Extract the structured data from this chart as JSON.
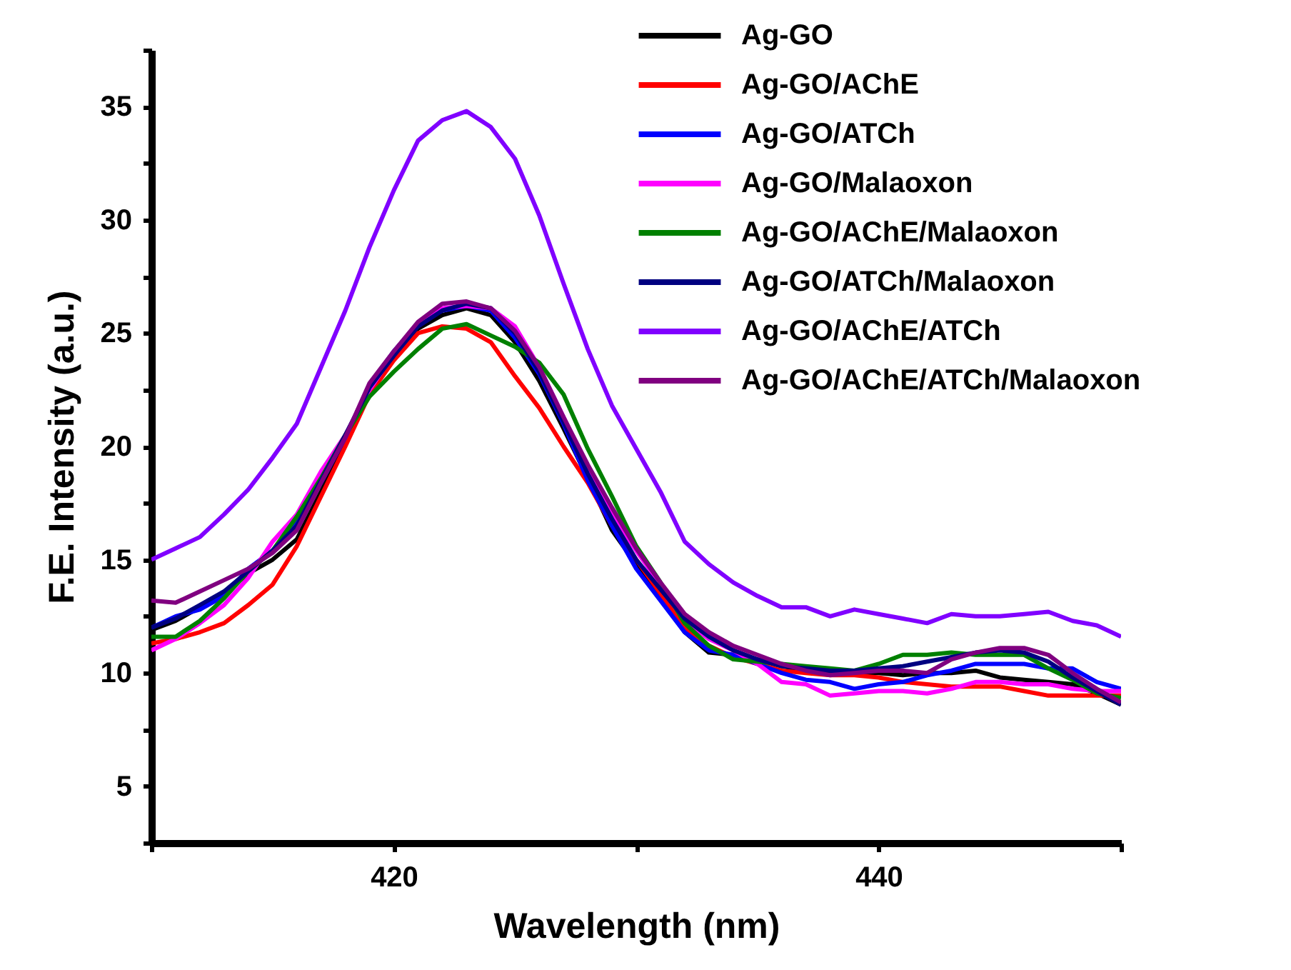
{
  "chart_data": {
    "type": "line",
    "xlabel": "Wavelength (nm)",
    "ylabel": "F.E. Intensity (a.u.)",
    "legend": "top right",
    "xlim": [
      410,
      450
    ],
    "xticks": [
      {
        "value": 410,
        "label": null
      },
      420,
      {
        "value": 430,
        "label": null
      },
      440,
      {
        "value": 450,
        "label": null
      }
    ],
    "ylim": [
      2.5,
      37.5
    ],
    "yticks": [
      {
        "value": 2.5,
        "label": null
      },
      5,
      {
        "value": 7.5,
        "label": null
      },
      10,
      {
        "value": 12.5,
        "label": null
      },
      15,
      {
        "value": 17.5,
        "label": null
      },
      20,
      {
        "value": 22.5,
        "label": null
      },
      25,
      {
        "value": 27.5,
        "label": null
      },
      30,
      {
        "value": 32.5,
        "label": null
      },
      35,
      {
        "value": 37.5,
        "label": null
      }
    ],
    "x": [
      410,
      411,
      412,
      413,
      414,
      415,
      416,
      417,
      418,
      419,
      420,
      421,
      422,
      423,
      424,
      425,
      426,
      427,
      428,
      429,
      430,
      431,
      432,
      433,
      434,
      435,
      436,
      437,
      438,
      439,
      440,
      441,
      442,
      443,
      444,
      445,
      446,
      447,
      448,
      449,
      450
    ],
    "series": [
      {
        "name": "Ag-GO",
        "color": "#000000",
        "values": [
          11.9,
          12.3,
          12.9,
          13.5,
          14.4,
          15.0,
          15.9,
          18.0,
          20.3,
          22.5,
          24.0,
          25.2,
          25.8,
          26.1,
          25.8,
          24.6,
          22.9,
          20.8,
          18.6,
          16.3,
          14.8,
          13.4,
          11.8,
          10.9,
          10.8,
          10.6,
          10.3,
          10.1,
          10.0,
          10.0,
          10.0,
          9.9,
          10.0,
          10.0,
          10.1,
          9.8,
          9.7,
          9.6,
          9.5,
          9.1,
          8.6
        ]
      },
      {
        "name": "Ag-GO/AChE",
        "color": "#ff0000",
        "values": [
          11.3,
          11.5,
          11.8,
          12.2,
          13.0,
          13.9,
          15.6,
          17.8,
          20.0,
          22.3,
          23.8,
          25.0,
          25.3,
          25.2,
          24.6,
          23.1,
          21.7,
          20.0,
          18.4,
          16.5,
          15.0,
          13.5,
          12.0,
          11.2,
          10.7,
          10.4,
          10.1,
          10.0,
          9.9,
          9.9,
          9.8,
          9.6,
          9.5,
          9.4,
          9.4,
          9.4,
          9.2,
          9.0,
          9.0,
          9.0,
          9.0
        ]
      },
      {
        "name": "Ag-GO/ATCh",
        "color": "#0000ff",
        "values": [
          12.0,
          12.5,
          12.8,
          13.4,
          14.6,
          15.4,
          16.6,
          18.4,
          20.4,
          22.7,
          24.2,
          25.4,
          26.0,
          26.2,
          26.0,
          24.8,
          23.2,
          21.0,
          18.5,
          16.5,
          14.6,
          13.2,
          11.8,
          11.0,
          10.8,
          10.4,
          10.0,
          9.7,
          9.6,
          9.3,
          9.5,
          9.6,
          9.9,
          10.1,
          10.4,
          10.4,
          10.4,
          10.2,
          10.2,
          9.6,
          9.3
        ]
      },
      {
        "name": "Ag-GO/Malaoxon",
        "color": "#ff00ff",
        "values": [
          11.0,
          11.5,
          12.2,
          13.0,
          14.2,
          15.8,
          17.0,
          18.9,
          20.5,
          22.5,
          24.1,
          25.4,
          26.1,
          26.2,
          26.1,
          25.3,
          23.5,
          21.3,
          19.0,
          17.0,
          15.4,
          13.9,
          12.3,
          11.5,
          11.0,
          10.4,
          9.6,
          9.5,
          9.0,
          9.1,
          9.2,
          9.2,
          9.1,
          9.3,
          9.6,
          9.6,
          9.5,
          9.5,
          9.3,
          9.2,
          9.2
        ]
      },
      {
        "name": "Ag-GO/AChE/Malaoxon",
        "color": "#008000",
        "values": [
          11.6,
          11.6,
          12.3,
          13.3,
          14.5,
          15.4,
          16.9,
          18.6,
          20.5,
          22.2,
          23.3,
          24.3,
          25.2,
          25.4,
          24.9,
          24.4,
          23.7,
          22.3,
          19.9,
          17.8,
          15.6,
          14.0,
          12.2,
          11.2,
          10.6,
          10.5,
          10.4,
          10.3,
          10.2,
          10.1,
          10.4,
          10.8,
          10.8,
          10.9,
          10.8,
          10.8,
          10.8,
          10.2,
          9.7,
          9.1,
          8.9
        ]
      },
      {
        "name": "Ag-GO/ATCh/Malaoxon",
        "color": "#000080",
        "values": [
          12.0,
          12.4,
          13.0,
          13.6,
          14.5,
          15.4,
          16.5,
          18.5,
          20.5,
          22.6,
          24.0,
          25.3,
          26.0,
          26.3,
          26.1,
          25.0,
          23.3,
          21.1,
          18.8,
          16.8,
          15.0,
          13.7,
          12.4,
          11.6,
          11.0,
          10.6,
          10.3,
          10.2,
          10.1,
          10.1,
          10.2,
          10.3,
          10.5,
          10.7,
          10.9,
          11.0,
          10.9,
          10.5,
          9.8,
          9.2,
          8.6
        ]
      },
      {
        "name": "Ag-GO/AChE/ATCh",
        "color": "#8000ff",
        "values": [
          15.0,
          15.5,
          16.0,
          17.0,
          18.1,
          19.5,
          21.0,
          23.5,
          26.0,
          28.8,
          31.3,
          33.5,
          34.4,
          34.8,
          34.1,
          32.7,
          30.2,
          27.2,
          24.3,
          21.8,
          19.9,
          18.0,
          15.8,
          14.8,
          14.0,
          13.4,
          12.9,
          12.9,
          12.5,
          12.8,
          12.6,
          12.4,
          12.2,
          12.6,
          12.5,
          12.5,
          12.6,
          12.7,
          12.3,
          12.1,
          11.6
        ]
      },
      {
        "name": "Ag-GO/AChE/ATCh/Malaoxon",
        "color": "#800080",
        "values": [
          13.2,
          13.1,
          13.6,
          14.1,
          14.6,
          15.3,
          16.3,
          18.4,
          20.4,
          22.8,
          24.2,
          25.5,
          26.3,
          26.4,
          26.1,
          25.1,
          23.5,
          21.3,
          19.2,
          17.3,
          15.5,
          14.0,
          12.6,
          11.8,
          11.2,
          10.8,
          10.4,
          10.1,
          9.9,
          10.0,
          10.1,
          10.1,
          10.0,
          10.6,
          10.9,
          11.1,
          11.1,
          10.8,
          10.0,
          9.3,
          8.7
        ]
      }
    ]
  }
}
